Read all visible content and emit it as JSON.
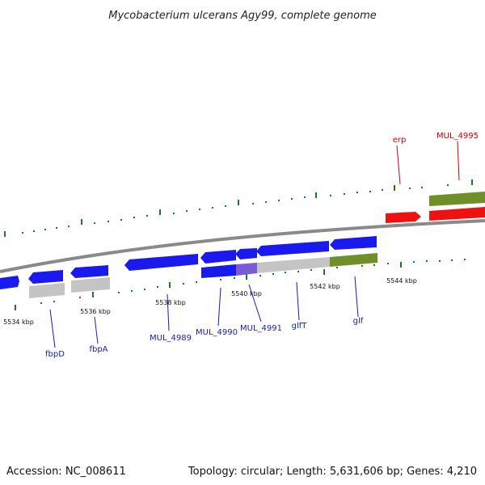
{
  "title": "Mycobacterium ulcerans Agy99, complete genome",
  "footer": {
    "accession": "Accession: NC_008611",
    "summary": "Topology: circular; Length: 5,631,606 bp; Genes: 4,210"
  },
  "colors": {
    "forward_gene": "#ee1111",
    "reverse_gene": "#1a1aee",
    "cds_grey": "#c4c4c4",
    "cds_green": "#6f8f2a",
    "tick": "#1f7a1f",
    "backbone": "#8a8a8a",
    "forward_label": "#cc0000",
    "reverse_label": "#1a1ab0"
  },
  "kbp_labels": [
    "5534 kbp",
    "5536 kbp",
    "5538 kbp",
    "5540 kbp",
    "5542 kbp",
    "5544 kbp"
  ],
  "gene_labels": {
    "forward": [
      "erp",
      "MUL_4995"
    ],
    "reverse": [
      "fbpD",
      "fbpA",
      "MUL_4989",
      "MUL_4990",
      "MUL_4991",
      "glfT",
      "glf"
    ]
  }
}
